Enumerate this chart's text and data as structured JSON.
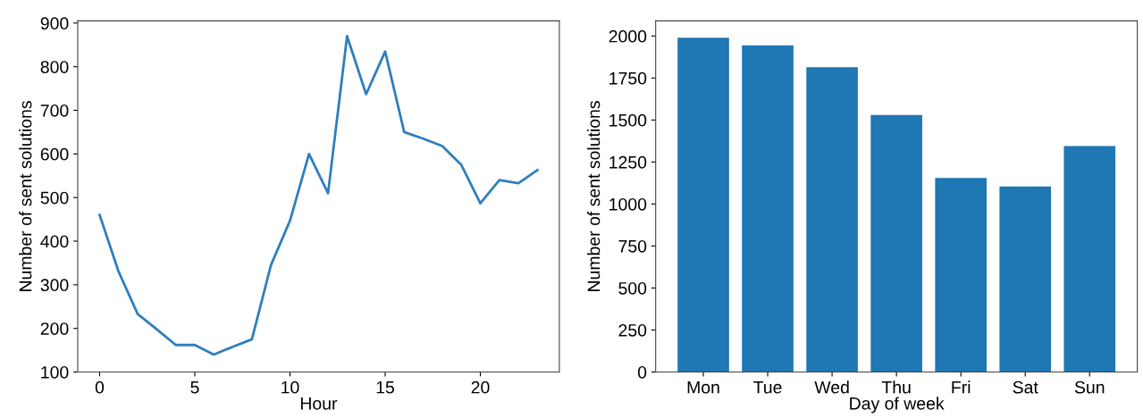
{
  "chart_data": [
    {
      "type": "line",
      "xlabel": "Hour",
      "ylabel": "Number of sent solutions",
      "color": "#2f7fbd",
      "x": [
        0,
        1,
        2,
        3,
        4,
        5,
        6,
        7,
        8,
        9,
        10,
        11,
        12,
        13,
        14,
        15,
        16,
        17,
        18,
        19,
        20,
        21,
        22,
        23
      ],
      "values": [
        460,
        330,
        233,
        198,
        162,
        162,
        140,
        158,
        175,
        345,
        447,
        600,
        510,
        870,
        737,
        835,
        650,
        635,
        618,
        575,
        487,
        540,
        533,
        563
      ],
      "xlim": [
        -1.15,
        24.15
      ],
      "xticks": [
        0,
        5,
        10,
        15,
        20
      ],
      "ylim": [
        100,
        905
      ],
      "yticks": [
        100,
        200,
        300,
        400,
        500,
        600,
        700,
        800,
        900
      ],
      "grid": false
    },
    {
      "type": "bar",
      "xlabel": "Day of week",
      "ylabel": "Number of sent solutions",
      "color": "#1f77b4",
      "categories": [
        "Mon",
        "Tue",
        "Wed",
        "Thu",
        "Fri",
        "Sat",
        "Sun"
      ],
      "values": [
        1990,
        1945,
        1815,
        1530,
        1155,
        1105,
        1345
      ],
      "ylim": [
        0,
        2090
      ],
      "yticks": [
        0,
        250,
        500,
        750,
        1000,
        1250,
        1500,
        1750,
        2000
      ],
      "grid": false
    }
  ]
}
